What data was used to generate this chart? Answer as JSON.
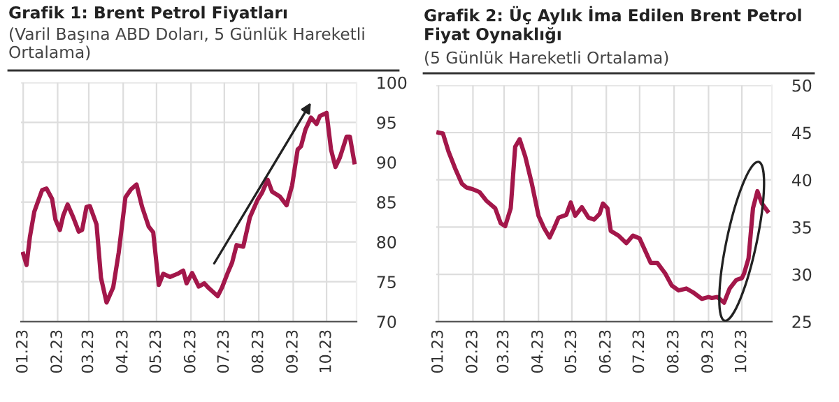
{
  "chart_data": [
    {
      "type": "line",
      "title": "Grafik 1: Brent Petrol Fiyatları",
      "subtitle": "(Varil Başına ABD Doları, 5 Günlük Hareketli Ortalama)",
      "x": [
        "2023-01-01",
        "2023-01-04",
        "2023-01-07",
        "2023-01-11",
        "2023-01-18",
        "2023-01-22",
        "2023-01-27",
        "2023-01-30",
        "2023-02-03",
        "2023-02-06",
        "2023-02-10",
        "2023-02-15",
        "2023-02-20",
        "2023-02-23",
        "2023-02-27",
        "2023-03-02",
        "2023-03-08",
        "2023-03-12",
        "2023-03-17",
        "2023-03-23",
        "2023-03-28",
        "2023-04-03",
        "2023-04-08",
        "2023-04-13",
        "2023-04-18",
        "2023-04-24",
        "2023-04-28",
        "2023-05-03",
        "2023-05-07",
        "2023-05-13",
        "2023-05-20",
        "2023-05-25",
        "2023-05-28",
        "2023-06-02",
        "2023-06-08",
        "2023-06-13",
        "2023-06-17",
        "2023-06-25",
        "2023-06-29",
        "2023-07-04",
        "2023-07-08",
        "2023-07-12",
        "2023-07-18",
        "2023-07-24",
        "2023-07-31",
        "2023-08-04",
        "2023-08-09",
        "2023-08-13",
        "2023-08-20",
        "2023-08-26",
        "2023-08-31",
        "2023-09-05",
        "2023-09-08",
        "2023-09-12",
        "2023-09-17",
        "2023-09-22",
        "2023-09-25",
        "2023-10-01",
        "2023-10-05",
        "2023-10-09",
        "2023-10-13",
        "2023-10-19",
        "2023-10-22",
        "2023-10-26"
      ],
      "series": [
        {
          "color": "#a3174a",
          "values": [
            78.5,
            77.1,
            80.6,
            83.8,
            86.5,
            86.7,
            85.4,
            82.8,
            81.5,
            83.3,
            84.7,
            83.1,
            81.3,
            81.5,
            84.4,
            84.5,
            82.2,
            75.5,
            72.4,
            74.3,
            78.7,
            85.6,
            86.6,
            87.2,
            84.4,
            81.9,
            81.2,
            74.6,
            76.0,
            75.6,
            76.0,
            76.4,
            74.8,
            76.1,
            74.4,
            74.8,
            74.2,
            73.2,
            74.3,
            76.1,
            77.4,
            79.6,
            79.4,
            83.1,
            85.3,
            86.2,
            87.8,
            86.3,
            85.7,
            84.6,
            87.1,
            91.6,
            92.0,
            94.1,
            95.6,
            94.8,
            95.8,
            96.2,
            91.6,
            89.4,
            90.6,
            93.2,
            93.2,
            90.0
          ]
        }
      ],
      "xlim": [
        "2022-12-30",
        "2023-10-28"
      ],
      "xticks": [
        {
          "value": "2023-01-01",
          "label": "01.23"
        },
        {
          "value": "2023-02-01",
          "label": "02.23"
        },
        {
          "value": "2023-03-01",
          "label": "03.23"
        },
        {
          "value": "2023-04-01",
          "label": "04.23"
        },
        {
          "value": "2023-05-01",
          "label": "05.23"
        },
        {
          "value": "2023-06-01",
          "label": "06.23"
        },
        {
          "value": "2023-07-01",
          "label": "07.23"
        },
        {
          "value": "2023-08-01",
          "label": "08.23"
        },
        {
          "value": "2023-09-01",
          "label": "09.23"
        },
        {
          "value": "2023-10-01",
          "label": "10.23"
        }
      ],
      "ylim": [
        70,
        100
      ],
      "yticks": [
        70,
        75,
        80,
        85,
        90,
        95,
        100
      ],
      "grid": true
    },
    {
      "type": "line",
      "title": "Grafik 2: Üç Aylık İma Edilen Brent Petrol Fiyat Oynaklığı",
      "subtitle": "(5 Günlük Hareketli Ortalama)",
      "x": [
        "2023-01-01",
        "2023-01-05",
        "2023-01-10",
        "2023-01-16",
        "2023-01-22",
        "2023-01-26",
        "2023-02-01",
        "2023-02-07",
        "2023-02-13",
        "2023-02-21",
        "2023-02-26",
        "2023-03-02",
        "2023-03-07",
        "2023-03-11",
        "2023-03-15",
        "2023-03-20",
        "2023-03-26",
        "2023-04-01",
        "2023-04-06",
        "2023-04-11",
        "2023-04-15",
        "2023-04-19",
        "2023-04-26",
        "2023-04-30",
        "2023-05-04",
        "2023-05-10",
        "2023-05-16",
        "2023-05-21",
        "2023-05-26",
        "2023-05-29",
        "2023-06-02",
        "2023-06-05",
        "2023-06-12",
        "2023-06-19",
        "2023-06-25",
        "2023-07-01",
        "2023-07-06",
        "2023-07-11",
        "2023-07-17",
        "2023-07-24",
        "2023-07-30",
        "2023-08-05",
        "2023-08-12",
        "2023-08-18",
        "2023-08-26",
        "2023-09-01",
        "2023-09-04",
        "2023-09-09",
        "2023-09-15",
        "2023-09-20",
        "2023-09-26",
        "2023-10-01",
        "2023-10-03",
        "2023-10-07",
        "2023-10-11",
        "2023-10-15",
        "2023-10-19",
        "2023-10-24"
      ],
      "series": [
        {
          "color": "#a3174a",
          "values": [
            45.0,
            44.9,
            43.0,
            41.2,
            39.6,
            39.2,
            39.0,
            38.7,
            37.8,
            37.0,
            35.4,
            35.1,
            37.0,
            43.5,
            44.3,
            42.5,
            39.6,
            36.2,
            34.9,
            33.9,
            34.9,
            36.0,
            36.3,
            37.6,
            36.2,
            37.1,
            36.0,
            35.8,
            36.4,
            37.5,
            37.0,
            34.6,
            34.1,
            33.3,
            34.1,
            33.8,
            32.5,
            31.2,
            31.2,
            30.1,
            28.8,
            28.3,
            28.5,
            28.1,
            27.4,
            27.6,
            27.5,
            27.6,
            27.0,
            28.5,
            29.4,
            29.6,
            30.1,
            31.7,
            37.0,
            38.8,
            37.5,
            36.7
          ]
        }
      ],
      "xlim": [
        "2022-12-30",
        "2023-10-28"
      ],
      "xticks": [
        {
          "value": "2023-01-01",
          "label": "01.23"
        },
        {
          "value": "2023-02-01",
          "label": "02.23"
        },
        {
          "value": "2023-03-01",
          "label": "03.23"
        },
        {
          "value": "2023-04-01",
          "label": "04.23"
        },
        {
          "value": "2023-05-01",
          "label": "05.23"
        },
        {
          "value": "2023-06-01",
          "label": "06.23"
        },
        {
          "value": "2023-07-01",
          "label": "07.23"
        },
        {
          "value": "2023-08-01",
          "label": "08.23"
        },
        {
          "value": "2023-09-01",
          "label": "09.23"
        },
        {
          "value": "2023-10-01",
          "label": "10.23"
        }
      ],
      "ylim": [
        25,
        50
      ],
      "yticks": [
        25,
        30,
        35,
        40,
        45,
        50
      ],
      "grid": true
    }
  ]
}
